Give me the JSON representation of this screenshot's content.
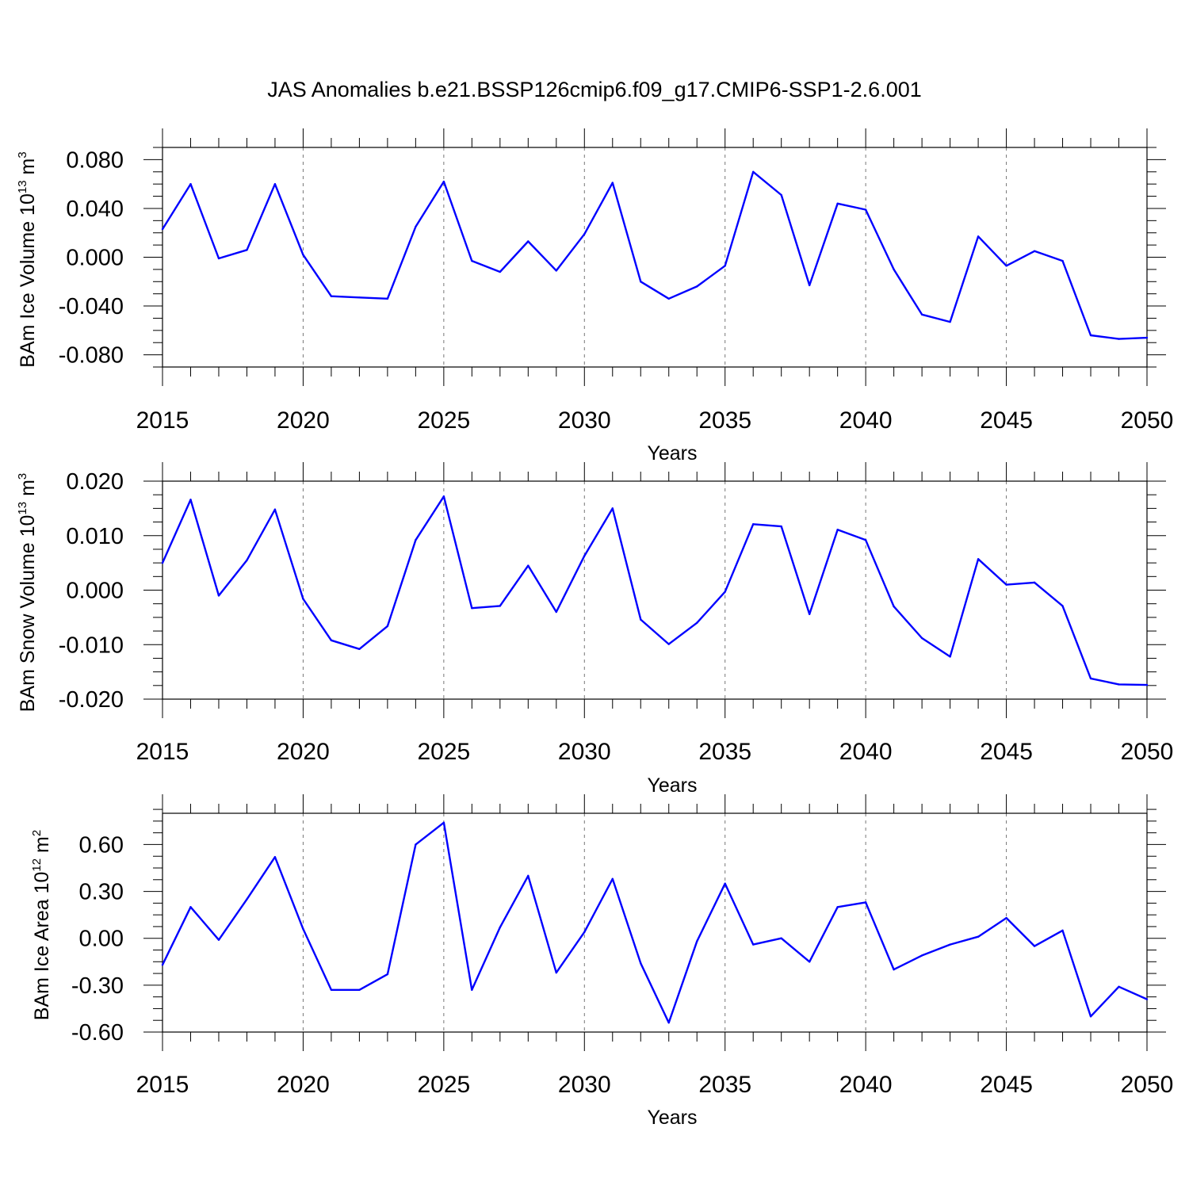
{
  "title": "JAS Anomalies b.e21.BSSP126cmip6.f09_g17.CMIP6-SSP1-2.6.001",
  "chart_data": [
    {
      "type": "line",
      "title": "",
      "ylabel": "BAm Ice Volume",
      "ylabel_unit_base": "10",
      "ylabel_unit_exp": "13",
      "ylabel_unit_sym": "m",
      "ylabel_unit_sym_exp": "3",
      "xlabel": "Years",
      "xlim": [
        2015,
        2050
      ],
      "ylim": [
        -0.09,
        0.09
      ],
      "yticks": [
        -0.08,
        -0.04,
        0.0,
        0.04,
        0.08
      ],
      "ytick_labels": [
        "-0.080",
        "-0.040",
        "0.000",
        "0.040",
        "0.080"
      ],
      "xticks": [
        2015,
        2020,
        2025,
        2030,
        2035,
        2040,
        2045,
        2050
      ],
      "xtick_labels": [
        "2015",
        "2020",
        "2025",
        "2030",
        "2035",
        "2040",
        "2045",
        "2050"
      ],
      "grid": "vertical dashed at major x ticks",
      "line_color": "#0000ff",
      "x": [
        2015,
        2016,
        2017,
        2018,
        2019,
        2020,
        2021,
        2022,
        2023,
        2024,
        2025,
        2026,
        2027,
        2028,
        2029,
        2030,
        2031,
        2032,
        2033,
        2034,
        2035,
        2036,
        2037,
        2038,
        2039,
        2040,
        2041,
        2042,
        2043,
        2044,
        2045,
        2046,
        2047,
        2048,
        2049,
        2050
      ],
      "values": [
        0.023,
        0.06,
        -0.001,
        0.006,
        0.06,
        0.002,
        -0.032,
        -0.033,
        -0.034,
        0.025,
        0.062,
        -0.003,
        -0.012,
        0.013,
        -0.011,
        0.019,
        0.061,
        -0.02,
        -0.034,
        -0.024,
        -0.007,
        0.07,
        0.051,
        -0.023,
        0.044,
        0.039,
        -0.01,
        -0.047,
        -0.053,
        0.017,
        -0.007,
        0.005,
        -0.003,
        -0.064,
        -0.067,
        -0.066
      ]
    },
    {
      "type": "line",
      "title": "",
      "ylabel": "BAm Snow Volume",
      "ylabel_unit_base": "10",
      "ylabel_unit_exp": "13",
      "ylabel_unit_sym": "m",
      "ylabel_unit_sym_exp": "3",
      "xlabel": "Years",
      "xlim": [
        2015,
        2050
      ],
      "ylim": [
        -0.02,
        0.02
      ],
      "yticks": [
        -0.02,
        -0.01,
        0.0,
        0.01,
        0.02
      ],
      "ytick_labels": [
        "-0.020",
        "-0.010",
        "0.000",
        "0.010",
        "0.020"
      ],
      "xticks": [
        2015,
        2020,
        2025,
        2030,
        2035,
        2040,
        2045,
        2050
      ],
      "xtick_labels": [
        "2015",
        "2020",
        "2025",
        "2030",
        "2035",
        "2040",
        "2045",
        "2050"
      ],
      "grid": "vertical dashed at major x ticks",
      "line_color": "#0000ff",
      "x": [
        2015,
        2016,
        2017,
        2018,
        2019,
        2020,
        2021,
        2022,
        2023,
        2024,
        2025,
        2026,
        2027,
        2028,
        2029,
        2030,
        2031,
        2032,
        2033,
        2034,
        2035,
        2036,
        2037,
        2038,
        2039,
        2040,
        2041,
        2042,
        2043,
        2044,
        2045,
        2046,
        2047,
        2048,
        2049,
        2050
      ],
      "values": [
        0.005,
        0.0166,
        -0.001,
        0.0055,
        0.0148,
        -0.0016,
        -0.0092,
        -0.0108,
        -0.0066,
        0.0092,
        0.0172,
        -0.0033,
        -0.0029,
        0.0045,
        -0.004,
        0.0063,
        0.015,
        -0.0054,
        -0.0099,
        -0.006,
        -0.0003,
        0.0121,
        0.0117,
        -0.0044,
        0.0111,
        0.0092,
        -0.003,
        -0.0088,
        -0.0122,
        0.0057,
        0.001,
        0.0014,
        -0.0029,
        -0.0162,
        -0.0173,
        -0.0174
      ]
    },
    {
      "type": "line",
      "title": "",
      "ylabel": "BAm Ice Area",
      "ylabel_unit_base": "10",
      "ylabel_unit_exp": "12",
      "ylabel_unit_sym": "m",
      "ylabel_unit_sym_exp": "2",
      "xlabel": "Years",
      "xlim": [
        2015,
        2050
      ],
      "ylim": [
        -0.6,
        0.8
      ],
      "yticks": [
        -0.6,
        -0.3,
        0.0,
        0.3,
        0.6
      ],
      "ytick_labels": [
        "-0.60",
        "-0.30",
        "0.00",
        "0.30",
        "0.60"
      ],
      "xticks": [
        2015,
        2020,
        2025,
        2030,
        2035,
        2040,
        2045,
        2050
      ],
      "xtick_labels": [
        "2015",
        "2020",
        "2025",
        "2030",
        "2035",
        "2040",
        "2045",
        "2050"
      ],
      "grid": "vertical dashed at major x ticks",
      "line_color": "#0000ff",
      "x": [
        2015,
        2016,
        2017,
        2018,
        2019,
        2020,
        2021,
        2022,
        2023,
        2024,
        2025,
        2026,
        2027,
        2028,
        2029,
        2030,
        2031,
        2032,
        2033,
        2034,
        2035,
        2036,
        2037,
        2038,
        2039,
        2040,
        2041,
        2042,
        2043,
        2044,
        2045,
        2046,
        2047,
        2048,
        2049,
        2050
      ],
      "values": [
        -0.17,
        0.2,
        -0.01,
        0.25,
        0.52,
        0.06,
        -0.33,
        -0.33,
        -0.23,
        0.6,
        0.74,
        -0.33,
        0.07,
        0.4,
        -0.22,
        0.04,
        0.38,
        -0.16,
        -0.54,
        -0.02,
        0.35,
        -0.04,
        0.0,
        -0.15,
        0.2,
        0.23,
        -0.2,
        -0.11,
        -0.04,
        0.01,
        0.13,
        -0.05,
        0.05,
        -0.5,
        -0.31,
        -0.39
      ]
    }
  ]
}
